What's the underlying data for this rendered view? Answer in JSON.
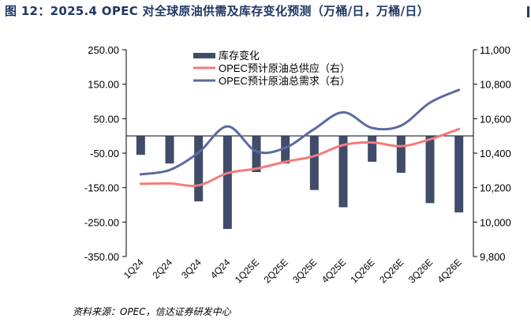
{
  "title": "图 12：2025.4 OPEC 对全球原油供需及库存变化预测（万桶/日，万桶/日）",
  "source": "资料来源：OPEC，信达证券研发中心",
  "colors": {
    "bar": "#414c6b",
    "supply": "#f47b7b",
    "demand": "#5a6aa0",
    "title": "#1f3864"
  },
  "chart_data": {
    "type": "bar",
    "title": "图 12：2025.4 OPEC 对全球原油供需及库存变化预测（万桶/日，万桶/日）",
    "categories": [
      "1Q24",
      "2Q24",
      "3Q24",
      "4Q24",
      "1Q25E",
      "2Q25E",
      "3Q25E",
      "4Q25E",
      "1Q26E",
      "2Q26E",
      "3Q26E",
      "4Q26E"
    ],
    "series": [
      {
        "name": "库存变化",
        "type": "bar",
        "axis": "left",
        "values": [
          -55,
          -80,
          -190,
          -270,
          -105,
          -80,
          -157,
          -207,
          -75,
          -107,
          -195,
          -222
        ]
      },
      {
        "name": "OPEC预计原油总供应（右）",
        "type": "line",
        "axis": "right",
        "values": [
          10222,
          10224,
          10213,
          10284,
          10310,
          10350,
          10383,
          10447,
          10462,
          10440,
          10480,
          10540
        ]
      },
      {
        "name": "OPEC预计原油总需求（右）",
        "type": "line",
        "axis": "right",
        "values": [
          10277,
          10302,
          10403,
          10555,
          10410,
          10431,
          10540,
          10637,
          10546,
          10560,
          10693,
          10767
        ]
      }
    ],
    "left_axis": {
      "ylim": [
        -350,
        250
      ],
      "ticks": [
        "250.00",
        "150.00",
        "50.00",
        "-50.00",
        "-150.00",
        "-250.00",
        "-350.00"
      ]
    },
    "right_axis": {
      "ylim": [
        9800,
        11000
      ],
      "ticks": [
        "11,000",
        "10,800",
        "10,600",
        "10,400",
        "10,200",
        "10,000",
        "9,800"
      ]
    },
    "legend": [
      "库存变化",
      "OPEC预计原油总供应（右）",
      "OPEC预计原油总需求（右）"
    ],
    "legend_position": "top-center",
    "grid": false
  }
}
